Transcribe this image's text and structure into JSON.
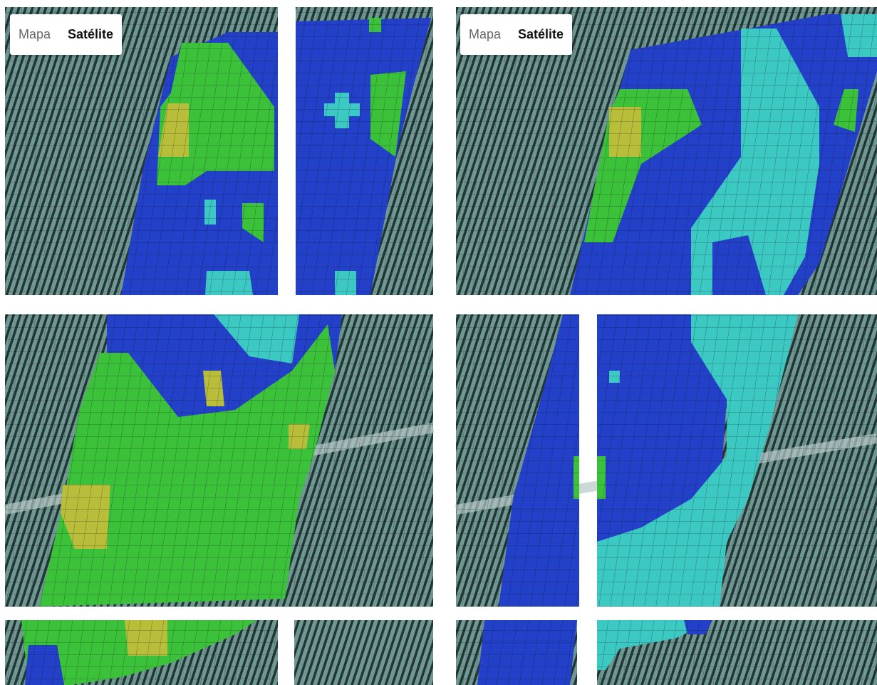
{
  "map_views": [
    {
      "controls": [
        "Mapa",
        "Satélite"
      ]
    },
    {
      "controls": [
        "Mapa",
        "Satélite"
      ]
    }
  ]
}
